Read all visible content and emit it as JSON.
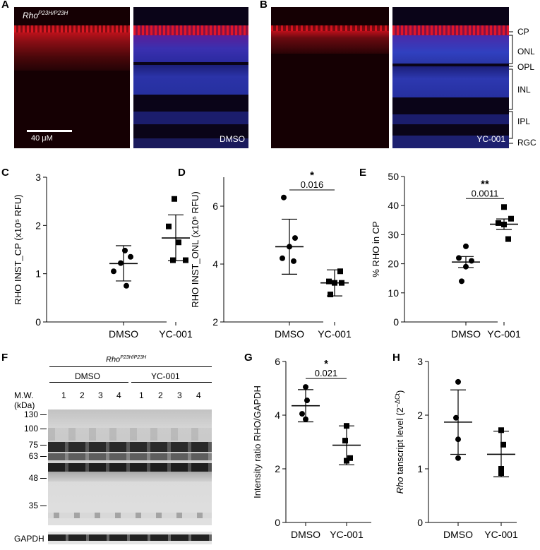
{
  "panels": {
    "A": {
      "label": "A",
      "genotype_base": "Rho",
      "genotype_sup": "P23H/P23H",
      "scalebar": "40 μM",
      "treatment": "DMSO"
    },
    "B": {
      "label": "B",
      "treatment": "YC-001",
      "layers": [
        "CP",
        "ONL",
        "OPL",
        "INL",
        "IPL",
        "RGC"
      ]
    },
    "C": {
      "label": "C"
    },
    "D": {
      "label": "D"
    },
    "E": {
      "label": "E"
    },
    "F": {
      "label": "F",
      "genotype_base": "Rho",
      "genotype_sup": "P23H/P23H",
      "group1": "DMSO",
      "group2": "YC-001",
      "mw_title": "M.W.",
      "mw_unit": "(kDa)",
      "lanes": [
        "1",
        "2",
        "3",
        "4",
        "1",
        "2",
        "3",
        "4"
      ],
      "markers": [
        "130",
        "100",
        "75",
        "63",
        "48",
        "35"
      ],
      "loading": "GAPDH"
    },
    "G": {
      "label": "G"
    },
    "H": {
      "label": "H"
    }
  },
  "chart_data": [
    {
      "id": "C",
      "type": "scatter",
      "ylabel": "RHO INST_CP (x10⁵ RFU)",
      "categories": [
        "DMSO",
        "YC-001"
      ],
      "ylim": [
        0,
        3
      ],
      "yticks": [
        "0",
        "1",
        "2",
        "3"
      ],
      "series": [
        {
          "name": "DMSO",
          "marker": "circle",
          "points": [
            1.48,
            1.35,
            1.22,
            1.05,
            0.75
          ],
          "mean": 1.21,
          "sd_low": 0.85,
          "sd_high": 1.58
        },
        {
          "name": "YC-001",
          "marker": "square",
          "points": [
            2.55,
            1.98,
            1.65,
            1.28,
            1.28
          ],
          "mean": 1.74,
          "sd_low": 1.27,
          "sd_high": 2.22
        }
      ],
      "significance": null
    },
    {
      "id": "D",
      "type": "scatter",
      "ylabel": "RHO INST_ONL (x10⁵ RFU)",
      "categories": [
        "DMSO",
        "YC-001"
      ],
      "ylim": [
        2,
        7
      ],
      "yticks": [
        "2",
        "4",
        "6"
      ],
      "series": [
        {
          "name": "DMSO",
          "marker": "circle",
          "points": [
            6.3,
            4.9,
            4.6,
            4.2,
            4.1
          ],
          "mean": 4.6,
          "sd_low": 3.65,
          "sd_high": 5.55
        },
        {
          "name": "YC-001",
          "marker": "square",
          "points": [
            3.75,
            3.4,
            3.35,
            3.35,
            2.95
          ],
          "mean": 3.35,
          "sd_low": 2.9,
          "sd_high": 3.8
        }
      ],
      "significance": {
        "stars": "*",
        "p": "0.016"
      }
    },
    {
      "id": "E",
      "type": "scatter",
      "ylabel": "% RHO in CP",
      "categories": [
        "DMSO",
        "YC-001"
      ],
      "ylim": [
        0,
        50
      ],
      "yticks": [
        "0",
        "10",
        "20",
        "30",
        "40",
        "50"
      ],
      "series": [
        {
          "name": "DMSO",
          "marker": "circle",
          "points": [
            26,
            22,
            21,
            19,
            14
          ],
          "mean": 20.6,
          "sd_low": 18.7,
          "sd_high": 22.5
        },
        {
          "name": "YC-001",
          "marker": "square",
          "points": [
            39.5,
            35.5,
            34,
            33.5,
            28.5
          ],
          "mean": 33.6,
          "sd_low": 31.8,
          "sd_high": 35.4
        }
      ],
      "significance": {
        "stars": "**",
        "p": "0.0011"
      }
    },
    {
      "id": "G",
      "type": "scatter",
      "ylabel": "Intensity ratio RHO/GAPDH",
      "categories": [
        "DMSO",
        "YC-001"
      ],
      "ylim": [
        0,
        6
      ],
      "yticks": [
        "0",
        "2",
        "4",
        "6"
      ],
      "series": [
        {
          "name": "DMSO",
          "marker": "circle",
          "points": [
            5.05,
            4.55,
            4.05,
            3.85
          ],
          "mean": 4.35,
          "sd_low": 3.75,
          "sd_high": 4.95
        },
        {
          "name": "YC-001",
          "marker": "square",
          "points": [
            3.6,
            3.05,
            2.4,
            2.3
          ],
          "mean": 2.88,
          "sd_low": 2.15,
          "sd_high": 3.6
        }
      ],
      "significance": {
        "stars": "*",
        "p": "0.021"
      }
    },
    {
      "id": "H",
      "type": "scatter",
      "ylabel_italic": "Rho",
      "ylabel_rest": " tanscript level (2",
      "ylabel_sup": "−ΔCt",
      "ylabel_end": ")",
      "categories": [
        "DMSO",
        "YC-001"
      ],
      "ylim": [
        0,
        3
      ],
      "yticks": [
        "0",
        "1",
        "2",
        "3"
      ],
      "series": [
        {
          "name": "DMSO",
          "marker": "circle",
          "points": [
            2.62,
            1.95,
            1.55,
            1.2
          ],
          "mean": 1.87,
          "sd_low": 1.27,
          "sd_high": 2.47
        },
        {
          "name": "YC-001",
          "marker": "square",
          "points": [
            1.72,
            1.45,
            1.0,
            0.92
          ],
          "mean": 1.27,
          "sd_low": 0.85,
          "sd_high": 1.7
        }
      ],
      "significance": null
    }
  ]
}
